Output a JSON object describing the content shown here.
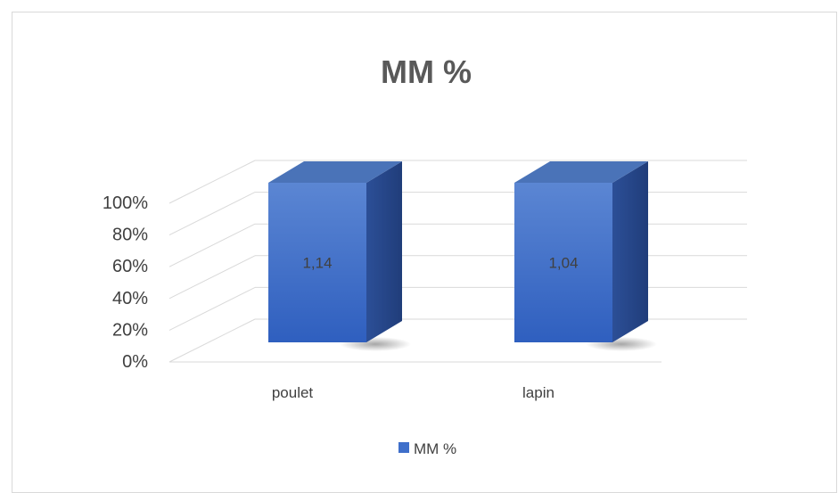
{
  "chart_data": {
    "type": "bar",
    "title": "MM %",
    "categories": [
      "poulet",
      "lapin"
    ],
    "series": [
      {
        "name": "MM %",
        "values": [
          1.14,
          1.04
        ],
        "data_labels": [
          "1,14",
          "1,04"
        ],
        "color": "#3f6fca"
      }
    ],
    "yticks": [
      "0%",
      "20%",
      "40%",
      "60%",
      "80%",
      "100%"
    ],
    "ylim": [
      0,
      100
    ],
    "style": "3d-column",
    "grid": true,
    "legend": "bottom"
  },
  "colors": {
    "bar_front": "#3f6fca",
    "bar_side": "#2a4f98",
    "bar_top": "#4a73b8",
    "grid": "#d9d9d9",
    "title": "#595959",
    "tick_text": "#404040",
    "category_text": "#404040"
  }
}
